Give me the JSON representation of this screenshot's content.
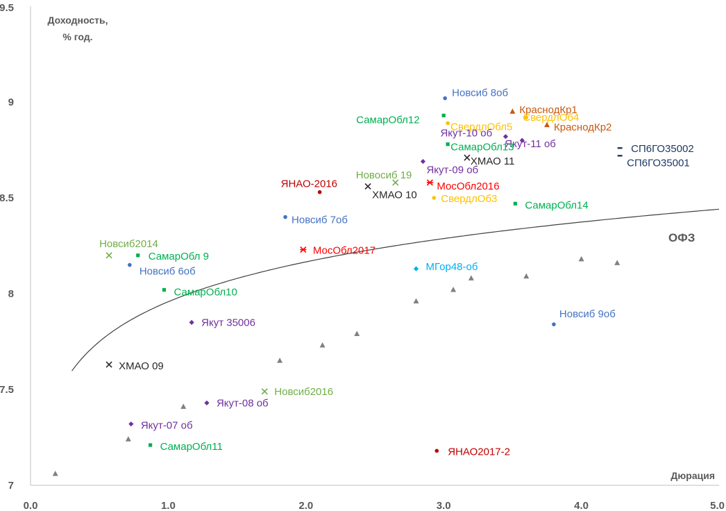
{
  "chart_data": {
    "type": "scatter",
    "ylabel": [
      "Доходность,",
      "% год."
    ],
    "xlabel": "Дюрация",
    "xlim": [
      0,
      5.0
    ],
    "ylim": [
      7,
      9.5
    ],
    "x_ticks": [
      "0.0",
      "1.0",
      "2.0",
      "3.0",
      "4.0",
      "5.0"
    ],
    "y_ticks": [
      "7",
      "7.5",
      "8",
      "8.5",
      "9",
      "9.5"
    ],
    "curve_label": "ОФЗ",
    "ofz_points": [
      [
        0.18,
        7.06
      ],
      [
        0.71,
        7.24
      ],
      [
        1.11,
        7.41
      ],
      [
        1.81,
        7.65
      ],
      [
        2.12,
        7.73
      ],
      [
        2.37,
        7.79
      ],
      [
        2.8,
        7.96
      ],
      [
        3.07,
        8.02
      ],
      [
        3.2,
        8.08
      ],
      [
        3.6,
        8.09
      ],
      [
        4.0,
        8.18
      ],
      [
        4.26,
        8.16
      ]
    ],
    "ofz_curve": {
      "a": 7.958,
      "b": 0.3,
      "x_start": 0.3,
      "x_end": 5.0
    },
    "points": [
      {
        "label": "Новсиб 8об",
        "x": 3.01,
        "y": 9.02,
        "color": "#4472c4",
        "marker": "dot"
      },
      {
        "label": "КраснодКр1",
        "x": 3.5,
        "y": 8.95,
        "color": "#c55a11",
        "marker": "tri"
      },
      {
        "label": "СамарОбл12",
        "x": 3.0,
        "y": 8.93,
        "color": "#00b050",
        "marker": "sq"
      },
      {
        "label": "СвердлОбл5",
        "x": 3.03,
        "y": 8.89,
        "color": "#ffc000",
        "marker": "dot"
      },
      {
        "label": "СвердлОб4",
        "x": 3.6,
        "y": 8.92,
        "color": "#ffc000",
        "marker": "dot"
      },
      {
        "label": "КраснодКр2",
        "x": 3.75,
        "y": 8.88,
        "color": "#c55a11",
        "marker": "tri"
      },
      {
        "label": "Якут-10 об",
        "x": 3.45,
        "y": 8.82,
        "color": "#7030a0",
        "marker": "dia"
      },
      {
        "label": "Якут-11 об",
        "x": 3.57,
        "y": 8.8,
        "color": "#7030a0",
        "marker": "dia"
      },
      {
        "label": "СамарОбл13",
        "x": 3.03,
        "y": 8.78,
        "color": "#00b050",
        "marker": "sq"
      },
      {
        "label": "СП6ГО35002",
        "x": 4.28,
        "y": 8.76,
        "color": "#1f3864",
        "marker": "dash"
      },
      {
        "label": "ХМАО 11",
        "x": 3.17,
        "y": 8.71,
        "color": "#262626",
        "marker": "x"
      },
      {
        "label": "СП6ГО35001",
        "x": 4.28,
        "y": 8.72,
        "color": "#1f3864",
        "marker": "dash"
      },
      {
        "label": "Якут-09 об",
        "x": 2.85,
        "y": 8.69,
        "color": "#7030a0",
        "marker": "dia"
      },
      {
        "label": "Новосиб 19",
        "x": 2.65,
        "y": 8.58,
        "color": "#70ad47",
        "marker": "x"
      },
      {
        "label": "ЯНАО-2016",
        "x": 2.1,
        "y": 8.53,
        "color": "#c00000",
        "marker": "dot"
      },
      {
        "label": "МосОбл2016",
        "x": 2.9,
        "y": 8.58,
        "color": "#ff0000",
        "marker": "star"
      },
      {
        "label": "ХМАО 10",
        "x": 2.45,
        "y": 8.56,
        "color": "#262626",
        "marker": "x"
      },
      {
        "label": "СвердлОб3",
        "x": 2.93,
        "y": 8.5,
        "color": "#ffc000",
        "marker": "dot"
      },
      {
        "label": "СамарОбл14",
        "x": 3.52,
        "y": 8.47,
        "color": "#00b050",
        "marker": "sq"
      },
      {
        "label": "Новсиб 7об",
        "x": 1.85,
        "y": 8.4,
        "color": "#4472c4",
        "marker": "dot"
      },
      {
        "label": "МосОбл2017",
        "x": 1.98,
        "y": 8.23,
        "color": "#ff0000",
        "marker": "star"
      },
      {
        "label": "Новсиб2014",
        "x": 0.57,
        "y": 8.2,
        "color": "#70ad47",
        "marker": "x"
      },
      {
        "label": "СамарОбл 9",
        "x": 0.78,
        "y": 8.2,
        "color": "#00b050",
        "marker": "sq"
      },
      {
        "label": "Новсиб 6об",
        "x": 0.72,
        "y": 8.15,
        "color": "#4472c4",
        "marker": "dot"
      },
      {
        "label": "МГор48-об",
        "x": 2.8,
        "y": 8.13,
        "color": "#00b0f0",
        "marker": "dia"
      },
      {
        "label": "СамарОбл10",
        "x": 0.97,
        "y": 8.02,
        "color": "#00b050",
        "marker": "sq"
      },
      {
        "label": "Новсиб 9об",
        "x": 3.8,
        "y": 7.84,
        "color": "#4472c4",
        "marker": "dot"
      },
      {
        "label": "Якут 35006",
        "x": 1.17,
        "y": 7.85,
        "color": "#7030a0",
        "marker": "dia"
      },
      {
        "label": "ХМАО 09",
        "x": 0.57,
        "y": 7.63,
        "color": "#262626",
        "marker": "x"
      },
      {
        "label": "Новсиб2016",
        "x": 1.7,
        "y": 7.49,
        "color": "#70ad47",
        "marker": "x"
      },
      {
        "label": "Якут-08 об",
        "x": 1.28,
        "y": 7.43,
        "color": "#7030a0",
        "marker": "dia"
      },
      {
        "label": "Якут-07 об",
        "x": 0.73,
        "y": 7.32,
        "color": "#7030a0",
        "marker": "dia"
      },
      {
        "label": "СамарОбл11",
        "x": 0.87,
        "y": 7.21,
        "color": "#00b050",
        "marker": "sq"
      },
      {
        "label": "ЯНАО2017-2",
        "x": 2.95,
        "y": 7.18,
        "color": "#c00000",
        "marker": "dot"
      }
    ]
  }
}
